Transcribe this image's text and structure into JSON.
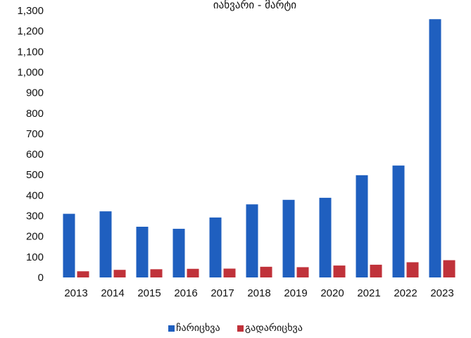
{
  "chart_data": {
    "type": "bar",
    "title": "იანვარი - მარტი",
    "categories": [
      "2013",
      "2014",
      "2015",
      "2016",
      "2017",
      "2018",
      "2019",
      "2020",
      "2021",
      "2022",
      "2023"
    ],
    "series": [
      {
        "name": "ჩარიცხვა",
        "color": "#1f5fbf",
        "values": [
          310,
          322,
          247,
          237,
          292,
          356,
          378,
          388,
          498,
          545,
          1258
        ]
      },
      {
        "name": "გადარიცხვა",
        "color": "#c0323a",
        "values": [
          30,
          37,
          40,
          42,
          43,
          52,
          50,
          58,
          62,
          74,
          84
        ]
      }
    ],
    "ylim": [
      0,
      1300
    ],
    "yticks": [
      "0",
      "100",
      "200",
      "300",
      "400",
      "500",
      "600",
      "700",
      "800",
      "900",
      "1,000",
      "1,100",
      "1,200",
      "1,300"
    ],
    "grid": false,
    "legend_position": "bottom"
  }
}
